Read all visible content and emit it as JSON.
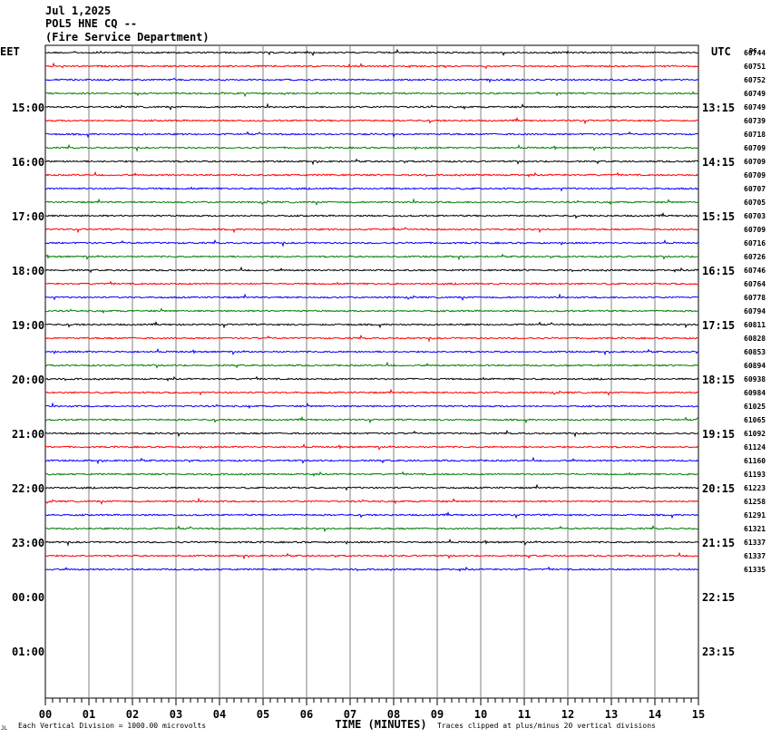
{
  "header": {
    "date": "Jul 1,2025",
    "station": "POL5 HNE CQ --",
    "agency": "(Fire Service Department)"
  },
  "chart_data": {
    "type": "line",
    "title": "Jul 1,2025",
    "left_axis_label": "EET",
    "right_axis_label": "UTC",
    "dc_label": "DC",
    "xlabel": "TIME (MINUTES)",
    "x_ticks": [
      "00",
      "01",
      "02",
      "03",
      "04",
      "05",
      "06",
      "07",
      "08",
      "09",
      "10",
      "11",
      "12",
      "13",
      "14",
      "15"
    ],
    "xlim": [
      0,
      15
    ],
    "left_hour_labels": [
      "15:00",
      "16:00",
      "17:00",
      "18:00",
      "19:00",
      "20:00",
      "21:00",
      "22:00",
      "23:00",
      "00:00",
      "01:00"
    ],
    "right_hour_labels": [
      "13:15",
      "14:15",
      "15:15",
      "16:15",
      "17:15",
      "18:15",
      "19:15",
      "20:15",
      "21:15",
      "22:15",
      "23:15"
    ],
    "dc_offsets": [
      60744,
      60751,
      60752,
      60749,
      60749,
      60739,
      60718,
      60709,
      60709,
      60709,
      60707,
      60705,
      60703,
      60709,
      60716,
      60726,
      60746,
      60764,
      60778,
      60794,
      60811,
      60828,
      60853,
      60894,
      60938,
      60984,
      61025,
      61065,
      61092,
      61124,
      61160,
      61193,
      61223,
      61258,
      61291,
      61321,
      61337,
      61337,
      61335
    ],
    "trace_colors": [
      "#000000",
      "#ff0000",
      "#0000ff",
      "#008000"
    ],
    "grid": true,
    "footer_left": "Each Vertical Division = 1000.00 microvolts",
    "footer_right": "Traces clipped at plus/minus 20 vertical divisions",
    "corner_mark": "JL"
  }
}
